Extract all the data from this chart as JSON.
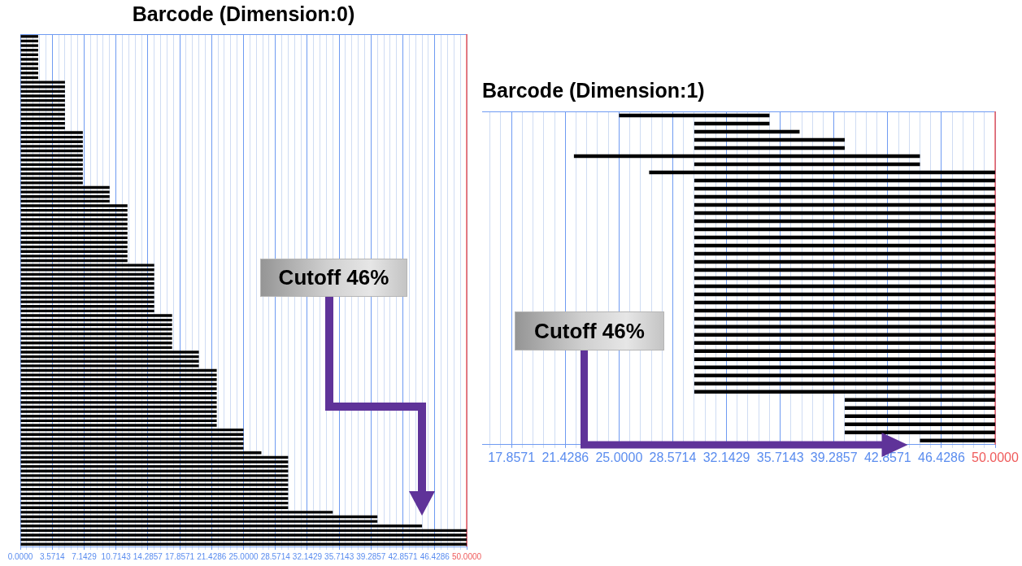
{
  "chart_data": [
    {
      "type": "bar",
      "orientation": "horizontal",
      "title": "Barcode (Dimension:0)",
      "categories": [
        null,
        null,
        null,
        null,
        null,
        null,
        null,
        null,
        null,
        null,
        null,
        null,
        null,
        null,
        null,
        null,
        null,
        null,
        null,
        null,
        null,
        null,
        null,
        null,
        null,
        null,
        null,
        null,
        null,
        null,
        null,
        null,
        null,
        null,
        null,
        null,
        null,
        null,
        null,
        null,
        null,
        null,
        null,
        null,
        null,
        null,
        null,
        null,
        null,
        null,
        null,
        null,
        null,
        null,
        null,
        null,
        null,
        null,
        null,
        null,
        null,
        null,
        null,
        null,
        null,
        null,
        null,
        null,
        null,
        null,
        null,
        null,
        null,
        null,
        null,
        null,
        null,
        null,
        null,
        null,
        null,
        null,
        null,
        null,
        null,
        null,
        null,
        null,
        null,
        null,
        null,
        null,
        null,
        null,
        null,
        null,
        null,
        null,
        null,
        null,
        null,
        null,
        null,
        null,
        null,
        null,
        null,
        null,
        null,
        null,
        null,
        null
      ],
      "values": [
        2,
        2,
        2,
        2,
        2,
        2,
        2,
        2,
        2,
        2,
        5,
        5,
        5,
        5,
        5,
        5,
        5,
        5,
        5,
        5,
        5,
        7,
        7,
        7,
        7,
        7,
        7,
        7,
        7,
        7,
        7,
        7,
        7,
        10,
        10,
        10,
        10,
        12,
        12,
        12,
        12,
        12,
        12,
        12,
        12,
        12,
        12,
        12,
        12,
        12,
        15,
        15,
        15,
        15,
        15,
        15,
        15,
        15,
        15,
        15,
        15,
        17,
        17,
        17,
        17,
        17,
        17,
        17,
        17,
        20,
        20,
        20,
        20,
        22,
        22,
        22,
        22,
        22,
        22,
        22,
        22,
        22,
        22,
        22,
        22,
        22,
        25,
        25,
        25,
        25,
        25,
        27,
        30,
        30,
        30,
        30,
        30,
        30,
        30,
        30,
        30,
        30,
        30,
        30,
        35,
        40,
        40,
        45,
        50,
        50,
        50,
        50
      ],
      "color": "#000000",
      "xlim": [
        0,
        50
      ],
      "xticks": [
        {
          "value": 0,
          "label": "0.0000"
        },
        {
          "value": 0.7143,
          "label": null
        },
        {
          "value": 1.4286,
          "label": null
        },
        {
          "value": 2.1429,
          "label": null
        },
        {
          "value": 2.8571,
          "label": null
        },
        3.5714,
        {
          "value": 4.2857,
          "label": null
        },
        {
          "value": 5,
          "label": null
        },
        {
          "value": 5.7143,
          "label": null
        },
        {
          "value": 6.4286,
          "label": null
        },
        7.1429,
        {
          "value": 7.8571,
          "label": null
        },
        {
          "value": 8.5714,
          "label": null
        },
        {
          "value": 9.2857,
          "label": null
        },
        {
          "value": 10,
          "label": null
        },
        10.7143,
        {
          "value": 11.4286,
          "label": null
        },
        {
          "value": 12.1429,
          "label": null
        },
        {
          "value": 12.8571,
          "label": null
        },
        {
          "value": 13.5714,
          "label": null
        },
        14.2857,
        {
          "value": 15,
          "label": null
        },
        {
          "value": 15.7143,
          "label": null
        },
        {
          "value": 16.4286,
          "label": null
        },
        {
          "value": 17.1429,
          "label": null
        },
        17.8571,
        {
          "value": 18.5714,
          "label": null
        },
        {
          "value": 19.2857,
          "label": null
        },
        {
          "value": 20,
          "label": null
        },
        {
          "value": 20.7143,
          "label": null
        },
        21.4286,
        {
          "value": 22.1429,
          "label": null
        },
        {
          "value": 22.8571,
          "label": null
        },
        {
          "value": 23.5714,
          "label": null
        },
        {
          "value": 24.2857,
          "label": null
        },
        {
          "value": 25,
          "label": "25.0000"
        },
        {
          "value": 25.7143,
          "label": null
        },
        {
          "value": 26.4286,
          "label": null
        },
        {
          "value": 27.1429,
          "label": null
        },
        {
          "value": 27.8571,
          "label": null
        },
        28.5714,
        {
          "value": 29.2857,
          "label": null
        },
        {
          "value": 30,
          "label": null
        },
        {
          "value": 30.7143,
          "label": null
        },
        {
          "value": 31.4286,
          "label": null
        },
        32.1429,
        {
          "value": 32.8571,
          "label": null
        },
        {
          "value": 33.5714,
          "label": null
        },
        {
          "value": 34.2857,
          "label": null
        },
        {
          "value": 35,
          "label": null
        },
        35.7143,
        {
          "value": 36.4286,
          "label": null
        },
        {
          "value": 37.1429,
          "label": null
        },
        {
          "value": 37.8571,
          "label": null
        },
        {
          "value": 38.5714,
          "label": null
        },
        39.2857,
        {
          "value": 40,
          "label": null
        },
        {
          "value": 40.7143,
          "label": null
        },
        {
          "value": 41.4286,
          "label": null
        },
        {
          "value": 42.1429,
          "label": null
        },
        42.8571,
        {
          "value": 43.5714,
          "label": null
        },
        {
          "value": 44.2857,
          "label": null
        },
        {
          "value": 45,
          "label": null
        },
        {
          "value": 45.7143,
          "label": null
        },
        46.4286,
        {
          "value": 47.1429,
          "label": null
        },
        {
          "value": 47.8571,
          "label": null
        },
        {
          "value": 48.5714,
          "label": null
        },
        {
          "value": 49.2857,
          "label": null
        },
        {
          "value": 50,
          "label": "50.0000"
        }
      ],
      "grid": "x",
      "ref_lines": [
        {
          "axis": "x",
          "value": 50,
          "color": "#ef5a5a"
        }
      ],
      "annotations": [
        "Cutoff 46%"
      ]
    },
    {
      "type": "bar",
      "orientation": "horizontal",
      "title": "Barcode (Dimension:1)",
      "categories": [
        null,
        null,
        null,
        null,
        null,
        null,
        null,
        null,
        null,
        null,
        null,
        null,
        null,
        null,
        null,
        null,
        null,
        null,
        null,
        null,
        null,
        null,
        null,
        null,
        null,
        null,
        null,
        null,
        null,
        null,
        null,
        null,
        null,
        null,
        null,
        null,
        null,
        null,
        null,
        null,
        null
      ],
      "base": [
        25,
        30,
        30,
        30,
        30,
        22,
        30,
        27,
        30,
        30,
        30,
        30,
        30,
        30,
        30,
        30,
        30,
        30,
        30,
        30,
        30,
        30,
        30,
        30,
        30,
        30,
        30,
        30,
        30,
        30,
        30,
        30,
        30,
        30,
        30,
        40,
        40,
        40,
        40,
        40,
        45
      ],
      "values": [
        10,
        5,
        7,
        10,
        10,
        23,
        15,
        23,
        20,
        20,
        20,
        20,
        20,
        20,
        20,
        20,
        20,
        20,
        20,
        20,
        20,
        20,
        20,
        20,
        20,
        20,
        20,
        20,
        20,
        20,
        20,
        20,
        20,
        20,
        20,
        10,
        10,
        10,
        10,
        10,
        5
      ],
      "color": "#000000",
      "xlim": [
        15.9,
        50
      ],
      "xticks": [
        {
          "value": 16.4286,
          "label": null
        },
        {
          "value": 17.1429,
          "label": null
        },
        17.8571,
        {
          "value": 18.5714,
          "label": null
        },
        {
          "value": 19.2857,
          "label": null
        },
        {
          "value": 20,
          "label": null
        },
        {
          "value": 20.7143,
          "label": null
        },
        21.4286,
        {
          "value": 22.1429,
          "label": null
        },
        {
          "value": 22.8571,
          "label": null
        },
        {
          "value": 23.5714,
          "label": null
        },
        {
          "value": 24.2857,
          "label": null
        },
        {
          "value": 25,
          "label": "25.0000"
        },
        {
          "value": 25.7143,
          "label": null
        },
        {
          "value": 26.4286,
          "label": null
        },
        {
          "value": 27.1429,
          "label": null
        },
        {
          "value": 27.8571,
          "label": null
        },
        28.5714,
        {
          "value": 29.2857,
          "label": null
        },
        {
          "value": 30,
          "label": null
        },
        {
          "value": 30.7143,
          "label": null
        },
        {
          "value": 31.4286,
          "label": null
        },
        32.1429,
        {
          "value": 32.8571,
          "label": null
        },
        {
          "value": 33.5714,
          "label": null
        },
        {
          "value": 34.2857,
          "label": null
        },
        {
          "value": 35,
          "label": null
        },
        35.7143,
        {
          "value": 36.4286,
          "label": null
        },
        {
          "value": 37.1429,
          "label": null
        },
        {
          "value": 37.8571,
          "label": null
        },
        {
          "value": 38.5714,
          "label": null
        },
        39.2857,
        {
          "value": 40,
          "label": null
        },
        {
          "value": 40.7143,
          "label": null
        },
        {
          "value": 41.4286,
          "label": null
        },
        {
          "value": 42.1429,
          "label": null
        },
        42.8571,
        {
          "value": 43.5714,
          "label": null
        },
        {
          "value": 44.2857,
          "label": null
        },
        {
          "value": 45,
          "label": null
        },
        {
          "value": 45.7143,
          "label": null
        },
        46.4286,
        {
          "value": 47.1429,
          "label": null
        },
        {
          "value": 47.8571,
          "label": null
        },
        {
          "value": 48.5714,
          "label": null
        },
        {
          "value": 49.2857,
          "label": null
        },
        {
          "value": 50,
          "label": "50.0000"
        }
      ],
      "grid": "x",
      "ref_lines": [
        {
          "axis": "x",
          "value": 50,
          "color": "#ef5a5a"
        }
      ],
      "annotations": [
        "Cutoff 46%"
      ]
    }
  ]
}
